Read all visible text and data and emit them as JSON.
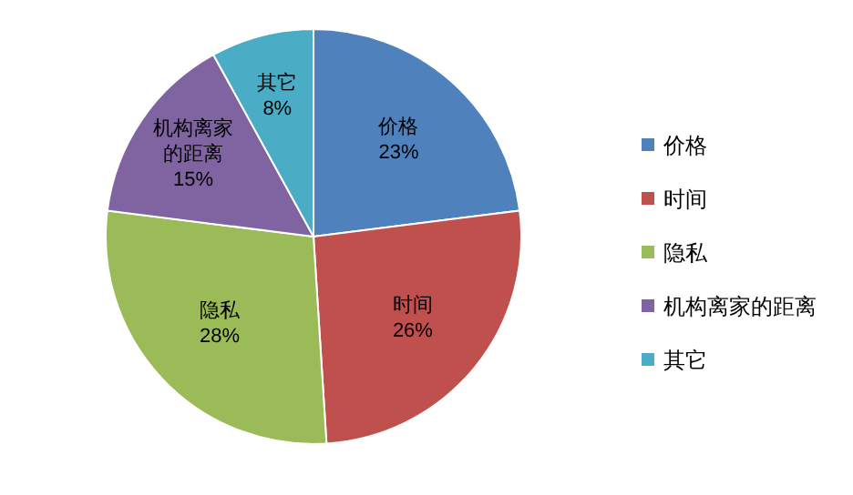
{
  "chart_data": {
    "type": "pie",
    "categories": [
      "价格",
      "时间",
      "隐私",
      "机构离家的距离",
      "其它"
    ],
    "values": [
      23,
      26,
      28,
      15,
      8
    ],
    "value_labels": [
      "23%",
      "26%",
      "28%",
      "15%",
      "8%"
    ],
    "colors": [
      "#4f81bd",
      "#c0504d",
      "#9bbb59",
      "#8064a2",
      "#4bacc6"
    ],
    "legend": "right"
  }
}
